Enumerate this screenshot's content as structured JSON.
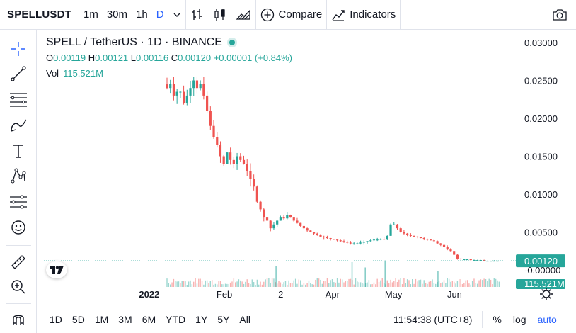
{
  "toolbar": {
    "symbol": "SPELLUSDT",
    "intervals": [
      "1m",
      "30m",
      "1h",
      "D"
    ],
    "active_interval": "D",
    "compare_label": "Compare",
    "indicators_label": "Indicators"
  },
  "legend": {
    "title": "SPELL / TetherUS · 1D · BINANCE",
    "o_label": "O",
    "o_value": "0.00119",
    "h_label": "H",
    "h_value": "0.00121",
    "l_label": "L",
    "l_value": "0.00116",
    "c_label": "C",
    "c_value": "0.00120",
    "change": "+0.00001 (+0.84%)",
    "vol_label": "Vol",
    "vol_value": "115.521M"
  },
  "price_tag": "0.00120",
  "volume_tag": "115.521M",
  "bottom": {
    "ranges": [
      "1D",
      "5D",
      "1M",
      "3M",
      "6M",
      "YTD",
      "1Y",
      "5Y",
      "All"
    ],
    "time": "11:54:38 (UTC+8)",
    "percent": "%",
    "log": "log",
    "auto": "auto"
  },
  "colors": {
    "up": "#26a69a",
    "down": "#ef5350",
    "accent": "#2962ff"
  },
  "chart_data": {
    "type": "candlestick",
    "title": "SPELL / TetherUS · 1D · BINANCE",
    "xlabel": "",
    "ylabel": "",
    "yticks": [
      "0.03000",
      "0.02500",
      "0.02000",
      "0.01500",
      "0.01000",
      "0.00500",
      "-0.00000"
    ],
    "ylim": [
      0,
      0.03
    ],
    "xticks": [
      "2022",
      "Feb",
      "2",
      "Apr",
      "May",
      "Jun"
    ],
    "grid": false,
    "series": [
      {
        "values": [
          0.024,
          0.0245,
          0.023,
          0.0235,
          0.0235,
          0.022,
          0.023,
          0.024,
          0.025,
          0.024,
          0.0245,
          0.023,
          0.021,
          0.019,
          0.0175,
          0.0165,
          0.015,
          0.014,
          0.0155,
          0.0145,
          0.014,
          0.015,
          0.0145,
          0.014,
          0.013,
          0.012,
          0.011,
          0.009,
          0.008,
          0.007,
          0.0065,
          0.0055,
          0.006,
          0.0065,
          0.007,
          0.0068,
          0.0072,
          0.007,
          0.0065,
          0.0062,
          0.0058,
          0.0055,
          0.0052,
          0.005,
          0.0048,
          0.0046,
          0.0044,
          0.0043,
          0.0042,
          0.0041,
          0.004,
          0.0039,
          0.0038,
          0.0037,
          0.0036,
          0.0035,
          0.0035,
          0.0035,
          0.0036,
          0.0037,
          0.0038,
          0.0039,
          0.004,
          0.004,
          0.0041,
          0.004,
          0.0045,
          0.006,
          0.006,
          0.0055,
          0.005,
          0.0048,
          0.0046,
          0.0045,
          0.0044,
          0.0043,
          0.0042,
          0.0041,
          0.004,
          0.0039,
          0.0038,
          0.0035,
          0.0033,
          0.003,
          0.0027,
          0.0025,
          0.002,
          0.0015,
          0.0014,
          0.0014,
          0.0014,
          0.0013,
          0.0013,
          0.0013,
          0.0013,
          0.0012,
          0.0012,
          0.0012,
          0.0012,
          0.0012
        ]
      }
    ],
    "last_price": 0.0012,
    "volume_peaks": [
      {
        "x_frac": 0.33,
        "rel": 0.6
      },
      {
        "x_frac": 0.56,
        "rel": 0.7
      },
      {
        "x_frac": 0.6,
        "rel": 0.55
      },
      {
        "x_frac": 0.66,
        "rel": 0.75
      },
      {
        "x_frac": 0.82,
        "rel": 0.45
      }
    ]
  }
}
